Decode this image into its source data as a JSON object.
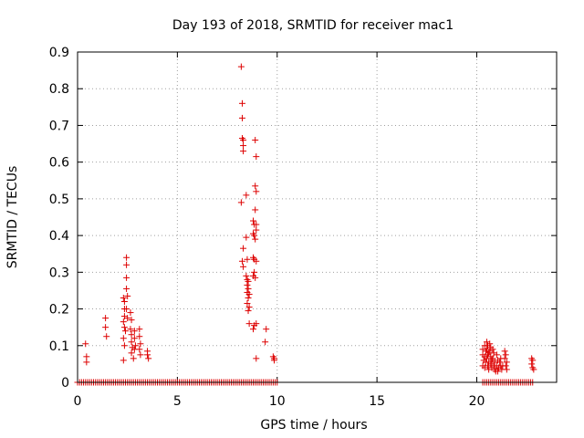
{
  "chart_data": {
    "type": "scatter",
    "title": "Day 193 of 2018, SRMTID for receiver mac1",
    "xlabel": "GPS time / hours",
    "ylabel": "SRMTID / TECUs",
    "xlim": [
      0,
      24
    ],
    "ylim": [
      0,
      0.9
    ],
    "xticks": [
      0,
      5,
      10,
      15,
      20
    ],
    "yticks": [
      0,
      0.1,
      0.2,
      0.3,
      0.4,
      0.5,
      0.6,
      0.7,
      0.8,
      0.9
    ],
    "xtick_labels": [
      "0",
      "5",
      "10",
      "15",
      "20"
    ],
    "ytick_labels": [
      "0",
      "0.1",
      "0.2",
      "0.3",
      "0.4",
      "0.5",
      "0.6",
      "0.7",
      "0.8",
      "0.9"
    ],
    "grid": true,
    "marker": "+",
    "color": "#dd0000",
    "baseline": {
      "y": 0,
      "x_ranges": [
        [
          0.0,
          10.0
        ],
        [
          20.3,
          22.8
        ]
      ],
      "step": 0.1
    },
    "series": [
      {
        "name": "SRMTID",
        "points": [
          [
            0.4,
            0.105
          ],
          [
            0.45,
            0.07
          ],
          [
            0.45,
            0.055
          ],
          [
            1.4,
            0.175
          ],
          [
            1.4,
            0.15
          ],
          [
            1.45,
            0.125
          ],
          [
            2.3,
            0.23
          ],
          [
            2.35,
            0.22
          ],
          [
            2.35,
            0.2
          ],
          [
            2.35,
            0.18
          ],
          [
            2.3,
            0.165
          ],
          [
            2.35,
            0.15
          ],
          [
            2.4,
            0.14
          ],
          [
            2.3,
            0.12
          ],
          [
            2.35,
            0.1
          ],
          [
            2.3,
            0.06
          ],
          [
            2.45,
            0.34
          ],
          [
            2.45,
            0.32
          ],
          [
            2.45,
            0.285
          ],
          [
            2.45,
            0.255
          ],
          [
            2.5,
            0.235
          ],
          [
            2.45,
            0.2
          ],
          [
            2.5,
            0.175
          ],
          [
            2.65,
            0.19
          ],
          [
            2.7,
            0.17
          ],
          [
            2.65,
            0.145
          ],
          [
            2.7,
            0.13
          ],
          [
            2.7,
            0.11
          ],
          [
            2.75,
            0.095
          ],
          [
            2.7,
            0.08
          ],
          [
            2.8,
            0.065
          ],
          [
            2.85,
            0.14
          ],
          [
            2.85,
            0.12
          ],
          [
            2.9,
            0.1
          ],
          [
            2.85,
            0.09
          ],
          [
            3.1,
            0.145
          ],
          [
            3.1,
            0.125
          ],
          [
            3.15,
            0.105
          ],
          [
            3.1,
            0.09
          ],
          [
            3.15,
            0.075
          ],
          [
            3.5,
            0.085
          ],
          [
            3.5,
            0.075
          ],
          [
            3.55,
            0.065
          ],
          [
            8.2,
            0.86
          ],
          [
            8.25,
            0.76
          ],
          [
            8.25,
            0.72
          ],
          [
            8.25,
            0.665
          ],
          [
            8.3,
            0.66
          ],
          [
            8.3,
            0.645
          ],
          [
            8.3,
            0.63
          ],
          [
            8.2,
            0.49
          ],
          [
            8.3,
            0.365
          ],
          [
            8.25,
            0.33
          ],
          [
            8.3,
            0.315
          ],
          [
            8.45,
            0.51
          ],
          [
            8.45,
            0.395
          ],
          [
            8.5,
            0.335
          ],
          [
            8.45,
            0.29
          ],
          [
            8.5,
            0.28
          ],
          [
            8.55,
            0.275
          ],
          [
            8.5,
            0.265
          ],
          [
            8.55,
            0.255
          ],
          [
            8.5,
            0.245
          ],
          [
            8.6,
            0.24
          ],
          [
            8.55,
            0.23
          ],
          [
            8.5,
            0.215
          ],
          [
            8.6,
            0.205
          ],
          [
            8.55,
            0.195
          ],
          [
            8.6,
            0.16
          ],
          [
            8.8,
            0.44
          ],
          [
            8.85,
            0.43
          ],
          [
            8.8,
            0.405
          ],
          [
            8.85,
            0.4
          ],
          [
            8.8,
            0.34
          ],
          [
            8.85,
            0.335
          ],
          [
            8.85,
            0.3
          ],
          [
            8.8,
            0.29
          ],
          [
            8.9,
            0.285
          ],
          [
            8.85,
            0.155
          ],
          [
            8.8,
            0.145
          ],
          [
            8.9,
            0.66
          ],
          [
            8.95,
            0.615
          ],
          [
            8.9,
            0.535
          ],
          [
            8.95,
            0.52
          ],
          [
            8.9,
            0.47
          ],
          [
            8.95,
            0.43
          ],
          [
            8.95,
            0.415
          ],
          [
            8.9,
            0.39
          ],
          [
            8.95,
            0.33
          ],
          [
            8.95,
            0.16
          ],
          [
            8.95,
            0.065
          ],
          [
            9.45,
            0.145
          ],
          [
            9.4,
            0.11
          ],
          [
            9.8,
            0.07
          ],
          [
            9.85,
            0.065
          ],
          [
            9.85,
            0.06
          ],
          [
            20.3,
            0.09
          ],
          [
            20.3,
            0.075
          ],
          [
            20.35,
            0.06
          ],
          [
            20.3,
            0.045
          ],
          [
            20.4,
            0.1
          ],
          [
            20.45,
            0.085
          ],
          [
            20.4,
            0.07
          ],
          [
            20.45,
            0.055
          ],
          [
            20.4,
            0.04
          ],
          [
            20.5,
            0.11
          ],
          [
            20.55,
            0.1
          ],
          [
            20.5,
            0.09
          ],
          [
            20.6,
            0.08
          ],
          [
            20.55,
            0.075
          ],
          [
            20.5,
            0.065
          ],
          [
            20.6,
            0.055
          ],
          [
            20.55,
            0.045
          ],
          [
            20.6,
            0.035
          ],
          [
            20.65,
            0.105
          ],
          [
            20.7,
            0.095
          ],
          [
            20.65,
            0.085
          ],
          [
            20.7,
            0.07
          ],
          [
            20.75,
            0.06
          ],
          [
            20.7,
            0.05
          ],
          [
            20.75,
            0.04
          ],
          [
            20.8,
            0.09
          ],
          [
            20.85,
            0.08
          ],
          [
            20.8,
            0.065
          ],
          [
            20.9,
            0.055
          ],
          [
            20.85,
            0.045
          ],
          [
            20.9,
            0.035
          ],
          [
            20.95,
            0.03
          ],
          [
            21.0,
            0.075
          ],
          [
            21.05,
            0.06
          ],
          [
            21.0,
            0.045
          ],
          [
            21.1,
            0.04
          ],
          [
            21.05,
            0.03
          ],
          [
            21.15,
            0.055
          ],
          [
            21.2,
            0.045
          ],
          [
            21.25,
            0.035
          ],
          [
            21.3,
            0.045
          ],
          [
            21.2,
            0.065
          ],
          [
            21.4,
            0.085
          ],
          [
            21.45,
            0.075
          ],
          [
            21.4,
            0.065
          ],
          [
            21.5,
            0.055
          ],
          [
            21.45,
            0.045
          ],
          [
            21.5,
            0.035
          ],
          [
            22.75,
            0.065
          ],
          [
            22.8,
            0.06
          ],
          [
            22.75,
            0.05
          ],
          [
            22.8,
            0.04
          ],
          [
            22.85,
            0.035
          ]
        ]
      }
    ]
  }
}
